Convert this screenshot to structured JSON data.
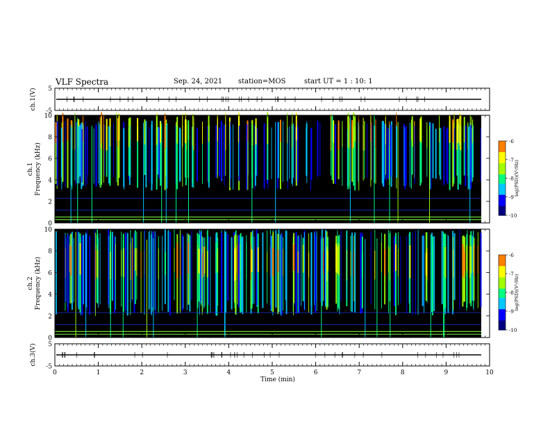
{
  "header": {
    "title": "VLF Spectra",
    "date": "Sep. 24, 2021",
    "station": "station=MOS",
    "start": "start  UT =   1 : 10: 1"
  },
  "chart_data": {
    "type": "heatmap",
    "title": "VLF Spectra",
    "xlabel": "Time  (min)",
    "xlim": [
      0,
      10
    ],
    "x_ticks": [
      "0",
      "1",
      "2",
      "3",
      "4",
      "5",
      "6",
      "7",
      "8",
      "9",
      "10"
    ],
    "panels": [
      {
        "id": "ch1-voltage",
        "type": "line",
        "ylabel": "ch.1(V)",
        "ylim": [
          -5,
          5
        ],
        "y_ticks": [
          "5",
          "-5"
        ],
        "trace_level": 0
      },
      {
        "id": "ch1-spectrum",
        "type": "heatmap",
        "ylabel": "ch.1\nFrequency (kHz)",
        "ylabel_top": "ch.1",
        "ylabel_bottom": "Frequency (kHz)",
        "ylim": [
          0,
          10
        ],
        "y_ticks": [
          "0",
          "2",
          "4",
          "6",
          "8",
          "10"
        ],
        "activity_band_khz": [
          4.5,
          9.5
        ],
        "peak_khz": 8.5,
        "colorbar": {
          "label": "log(PSD)(V²/Hz)",
          "range": [
            -10,
            -6
          ],
          "ticks": [
            "-6",
            "-7",
            "-8",
            "-9",
            "-10"
          ]
        }
      },
      {
        "id": "ch2-spectrum",
        "type": "heatmap",
        "ylabel": "ch.2\nFrequency (kHz)",
        "ylabel_top": "ch.2",
        "ylabel_bottom": "Frequency (kHz)",
        "ylim": [
          0,
          10
        ],
        "y_ticks": [
          "0",
          "2",
          "4",
          "6",
          "8",
          "10"
        ],
        "activity_band_khz": [
          3.5,
          10
        ],
        "peak_khz": 7,
        "colorbar": {
          "label": "log(PSD)(V²/Hz)",
          "range": [
            -10,
            -6
          ],
          "ticks": [
            "-6",
            "-7",
            "-8",
            "-9",
            "-10"
          ]
        }
      },
      {
        "id": "ch3-voltage",
        "type": "line",
        "ylabel": "ch.3(V)",
        "ylim": [
          -5,
          5
        ],
        "y_ticks": [
          "5",
          "-5"
        ],
        "trace_level": 0
      }
    ],
    "colormap": [
      "#000080",
      "#0000ff",
      "#00c8ff",
      "#00ff80",
      "#a0ff00",
      "#ffff00",
      "#ff8000",
      "#ff0000",
      "#ffffff"
    ]
  }
}
